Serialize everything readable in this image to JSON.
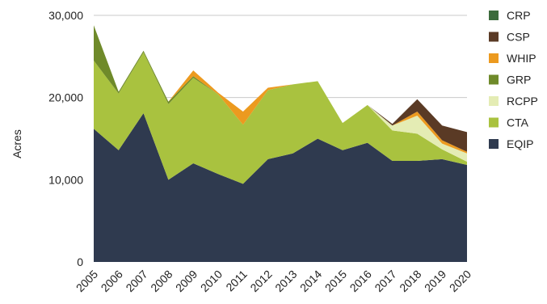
{
  "chart_data": {
    "type": "area",
    "stacked": true,
    "title": "",
    "xlabel": "",
    "ylabel": "Acres",
    "ylim": [
      0,
      30000
    ],
    "yticks": [
      0,
      10000,
      20000,
      30000
    ],
    "ytick_labels": [
      "0",
      "10,000",
      "20,000",
      "30,000"
    ],
    "grid": true,
    "legend_position": "right",
    "x": [
      "2005",
      "2006",
      "2007",
      "2008",
      "2009",
      "2010",
      "2011",
      "2012",
      "2013",
      "2014",
      "2015",
      "2016",
      "2017",
      "2018",
      "2019",
      "2020"
    ],
    "series": [
      {
        "name": "EQIP",
        "color": "#2f3a4f",
        "values": [
          16200,
          13600,
          18100,
          10000,
          12000,
          10700,
          9500,
          12500,
          13200,
          15000,
          13600,
          14500,
          12300,
          12300,
          12500,
          11800
        ]
      },
      {
        "name": "CTA",
        "color": "#a9c23f",
        "values": [
          8300,
          6900,
          7400,
          9200,
          10400,
          9700,
          7200,
          8400,
          8400,
          7000,
          3300,
          4600,
          3700,
          3300,
          1200,
          400
        ]
      },
      {
        "name": "RCPP",
        "color": "#e4ecb4",
        "values": [
          0,
          0,
          0,
          0,
          0,
          0,
          0,
          0,
          0,
          0,
          0,
          0,
          600,
          2200,
          700,
          1000
        ]
      },
      {
        "name": "GRP",
        "color": "#6f8a2a",
        "values": [
          4300,
          200,
          200,
          300,
          200,
          0,
          0,
          0,
          0,
          0,
          0,
          0,
          0,
          0,
          0,
          0
        ]
      },
      {
        "name": "WHIP",
        "color": "#ec9a1f",
        "values": [
          0,
          0,
          0,
          0,
          700,
          200,
          1600,
          300,
          0,
          0,
          0,
          0,
          0,
          500,
          400,
          200
        ]
      },
      {
        "name": "CSP",
        "color": "#5a3a25",
        "values": [
          0,
          0,
          0,
          0,
          0,
          0,
          0,
          0,
          0,
          0,
          0,
          0,
          200,
          1500,
          1800,
          2400
        ]
      },
      {
        "name": "CRP",
        "color": "#3c6b3c",
        "values": [
          0,
          0,
          0,
          0,
          0,
          0,
          0,
          0,
          0,
          0,
          0,
          0,
          0,
          0,
          0,
          0
        ]
      }
    ],
    "legend_order": [
      "CRP",
      "CSP",
      "WHIP",
      "GRP",
      "RCPP",
      "CTA",
      "EQIP"
    ]
  }
}
